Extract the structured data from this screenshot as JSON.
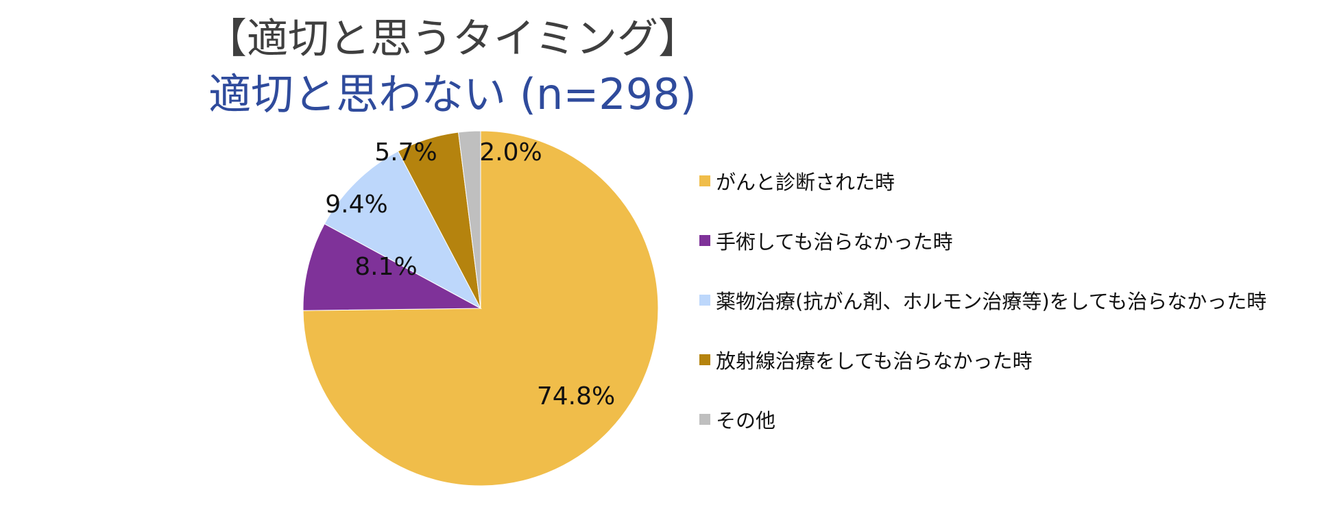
{
  "chart_data": {
    "type": "pie",
    "title": "【適切と思うタイミング】",
    "subtitle": "適切と思わない (n=298)",
    "slices": [
      {
        "label": "がんと診断された時",
        "value": 74.8,
        "display": "74.8%",
        "color": "#f0bd4a"
      },
      {
        "label": "手術しても治らなかった時",
        "value": 8.1,
        "display": "8.1%",
        "color": "#7f3299"
      },
      {
        "label": "薬物治療(抗がん剤、ホルモン治療等)をしても治らなかった時",
        "value": 9.4,
        "display": "9.4%",
        "color": "#bdd7fb"
      },
      {
        "label": "放射線治療をしても治らなかった時",
        "value": 5.7,
        "display": "5.7%",
        "color": "#b5830e"
      },
      {
        "label": "その他",
        "value": 2.0,
        "display": "2.0%",
        "color": "#bfbfbf"
      }
    ],
    "start_angle_deg": 0,
    "direction": "clockwise",
    "legend_position": "right"
  }
}
